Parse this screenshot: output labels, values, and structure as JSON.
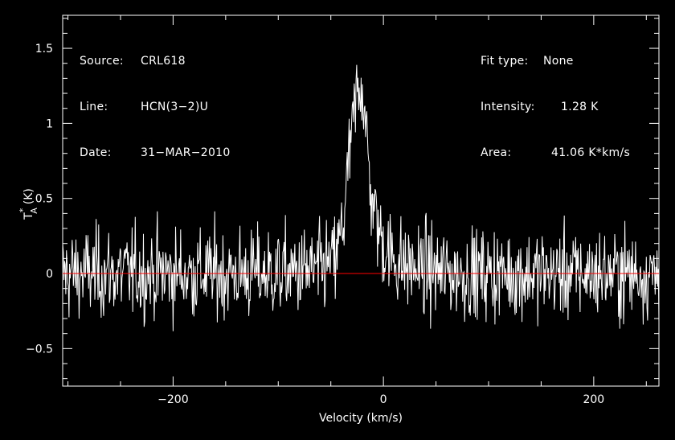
{
  "info_left": {
    "source_label": "Source:",
    "source_value": "CRL618",
    "line_label": "Line:",
    "line_value": "HCN(3−2)U",
    "date_label": "Date:",
    "date_value": "31−MAR−2010"
  },
  "info_right": {
    "fit_label": "Fit type:",
    "fit_value": "None",
    "intensity_label": "Intensity:",
    "intensity_value": "1.28 K",
    "area_label": "Area:",
    "area_value": "41.06 K*km/s"
  },
  "chart_data": {
    "type": "line",
    "xlabel": "Velocity (km/s)",
    "ylabel_main": "T",
    "ylabel_sup": "*",
    "ylabel_sub": "A",
    "ylabel_unit": "(K)",
    "xlim": [
      -305,
      262
    ],
    "ylim": [
      -0.75,
      1.72
    ],
    "xticks": [
      -200,
      0,
      200
    ],
    "xtick_labels": [
      "−200",
      "0",
      "200"
    ],
    "yticks": [
      -0.5,
      0,
      0.5,
      1,
      1.5
    ],
    "ytick_labels": [
      "−0.5",
      "0",
      "0.5",
      "1",
      "1.5"
    ],
    "baseline": 0,
    "noise_rms": 0.15,
    "series": [
      {
        "x": [
          -305,
          -250,
          -200,
          -150,
          -100,
          -60,
          -45,
          -38,
          -32,
          -28,
          -25,
          -22,
          -20,
          -18,
          -16,
          -14,
          -12,
          -8,
          -4,
          0,
          5,
          10,
          20,
          40,
          60,
          100,
          150,
          200,
          262
        ],
        "values": [
          0,
          0,
          0,
          0,
          0,
          0.02,
          0.1,
          0.35,
          0.8,
          1.05,
          1.2,
          1.28,
          1.25,
          1.1,
          0.9,
          0.7,
          0.55,
          0.4,
          0.28,
          0.2,
          0.14,
          0.1,
          0.05,
          0.02,
          0,
          0,
          0,
          0,
          0
        ]
      }
    ],
    "colors": {
      "spectrum": "#ffffff",
      "baseline": "#ff0000",
      "frame": "#ffffff"
    },
    "grid": false
  }
}
